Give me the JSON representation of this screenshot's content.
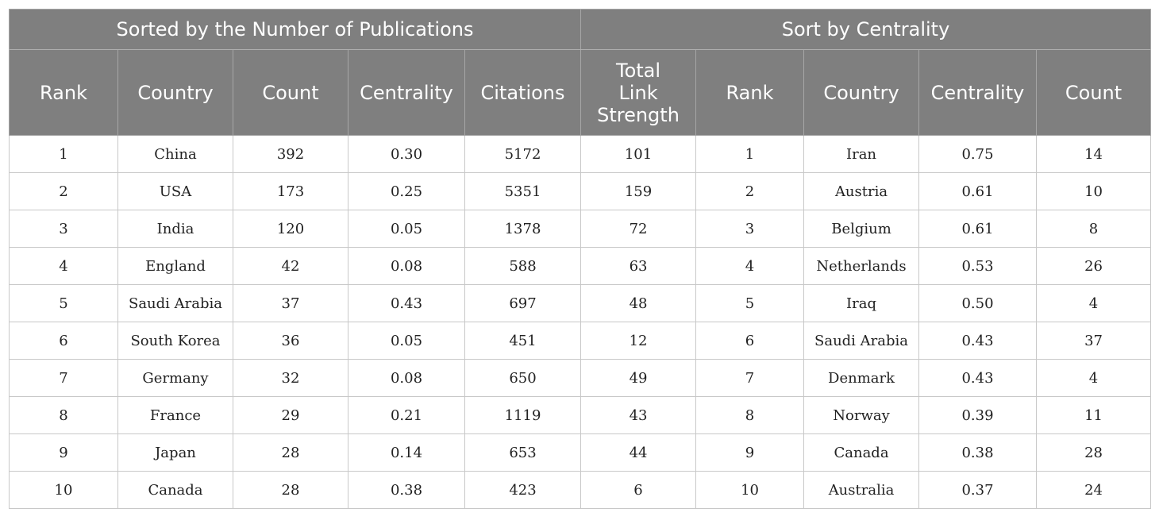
{
  "groups": {
    "by_publications": "Sorted by the Number of Publications",
    "by_centrality": "Sort by Centrality"
  },
  "columns": {
    "left": [
      "Rank",
      "Country",
      "Count",
      "Centrality",
      "Citations",
      "Total\nLink\nStrength"
    ],
    "right": [
      "Rank",
      "Country",
      "Centrality",
      "Count"
    ]
  },
  "rows": [
    {
      "rank": "1",
      "country": "China",
      "count": "392",
      "centrality": "0.30",
      "citations": "5172",
      "tls": "101",
      "c_rank": "1",
      "c_country": "Iran",
      "c_centrality": "0.75",
      "c_count": "14"
    },
    {
      "rank": "2",
      "country": "USA",
      "count": "173",
      "centrality": "0.25",
      "citations": "5351",
      "tls": "159",
      "c_rank": "2",
      "c_country": "Austria",
      "c_centrality": "0.61",
      "c_count": "10"
    },
    {
      "rank": "3",
      "country": "India",
      "count": "120",
      "centrality": "0.05",
      "citations": "1378",
      "tls": "72",
      "c_rank": "3",
      "c_country": "Belgium",
      "c_centrality": "0.61",
      "c_count": "8"
    },
    {
      "rank": "4",
      "country": "England",
      "count": "42",
      "centrality": "0.08",
      "citations": "588",
      "tls": "63",
      "c_rank": "4",
      "c_country": "Netherlands",
      "c_centrality": "0.53",
      "c_count": "26"
    },
    {
      "rank": "5",
      "country": "Saudi Arabia",
      "count": "37",
      "centrality": "0.43",
      "citations": "697",
      "tls": "48",
      "c_rank": "5",
      "c_country": "Iraq",
      "c_centrality": "0.50",
      "c_count": "4"
    },
    {
      "rank": "6",
      "country": "South Korea",
      "count": "36",
      "centrality": "0.05",
      "citations": "451",
      "tls": "12",
      "c_rank": "6",
      "c_country": "Saudi Arabia",
      "c_centrality": "0.43",
      "c_count": "37"
    },
    {
      "rank": "7",
      "country": "Germany",
      "count": "32",
      "centrality": "0.08",
      "citations": "650",
      "tls": "49",
      "c_rank": "7",
      "c_country": "Denmark",
      "c_centrality": "0.43",
      "c_count": "4"
    },
    {
      "rank": "8",
      "country": "France",
      "count": "29",
      "centrality": "0.21",
      "citations": "1119",
      "tls": "43",
      "c_rank": "8",
      "c_country": "Norway",
      "c_centrality": "0.39",
      "c_count": "11"
    },
    {
      "rank": "9",
      "country": "Japan",
      "count": "28",
      "centrality": "0.14",
      "citations": "653",
      "tls": "44",
      "c_rank": "9",
      "c_country": "Canada",
      "c_centrality": "0.38",
      "c_count": "28"
    },
    {
      "rank": "10",
      "country": "Canada",
      "count": "28",
      "centrality": "0.38",
      "citations": "423",
      "tls": "6",
      "c_rank": "10",
      "c_country": "Australia",
      "c_centrality": "0.37",
      "c_count": "24"
    }
  ],
  "colors": {
    "header_bg": "#7f7f7f",
    "header_text": "#ffffff",
    "grid": "#c8c8c8"
  }
}
